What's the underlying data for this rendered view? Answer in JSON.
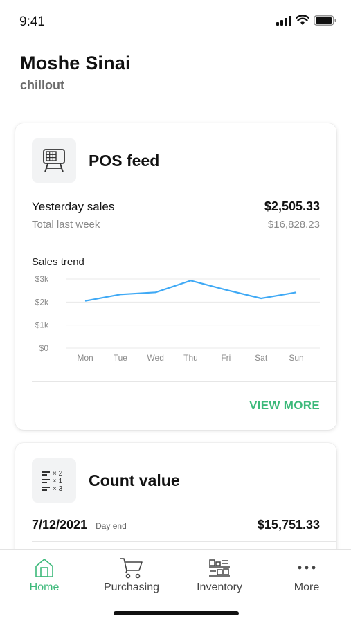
{
  "status_bar": {
    "time": "9:41"
  },
  "header": {
    "user_name": "Moshe Sinai",
    "venue": "chillout"
  },
  "pos_card": {
    "title": "POS feed",
    "icon": "pos-terminal-icon",
    "yesterday_label": "Yesterday sales",
    "yesterday_value": "$2,505.33",
    "last_week_label": "Total last week",
    "last_week_value": "$16,828.23",
    "trend_title": "Sales trend",
    "view_more_label": "VIEW MORE"
  },
  "chart_data": {
    "type": "line",
    "title": "Sales trend",
    "categories": [
      "Mon",
      "Tue",
      "Wed",
      "Thu",
      "Fri",
      "Sat",
      "Sun"
    ],
    "values": [
      2050,
      2330,
      2420,
      2930,
      2530,
      2160,
      2420
    ],
    "y_ticks": [
      "$0",
      "$1k",
      "$2k",
      "$3k"
    ],
    "ylim": [
      0,
      3000
    ],
    "grid": true,
    "line_color": "#3fa9f5"
  },
  "count_card": {
    "title": "Count value",
    "icon": "count-list-icon",
    "icon_rows": [
      "× 2",
      "× 1",
      "× 3"
    ],
    "date": "7/12/2021",
    "tag": "Day end",
    "value": "$15,751.33"
  },
  "tab_bar": {
    "active": "home",
    "accent_color": "#3cb97a",
    "tabs": [
      {
        "id": "home",
        "label": "Home",
        "icon": "home-icon"
      },
      {
        "id": "purchasing",
        "label": "Purchasing",
        "icon": "cart-icon"
      },
      {
        "id": "inventory",
        "label": "Inventory",
        "icon": "inventory-icon"
      },
      {
        "id": "more",
        "label": "More",
        "icon": "more-dots-icon"
      }
    ]
  }
}
